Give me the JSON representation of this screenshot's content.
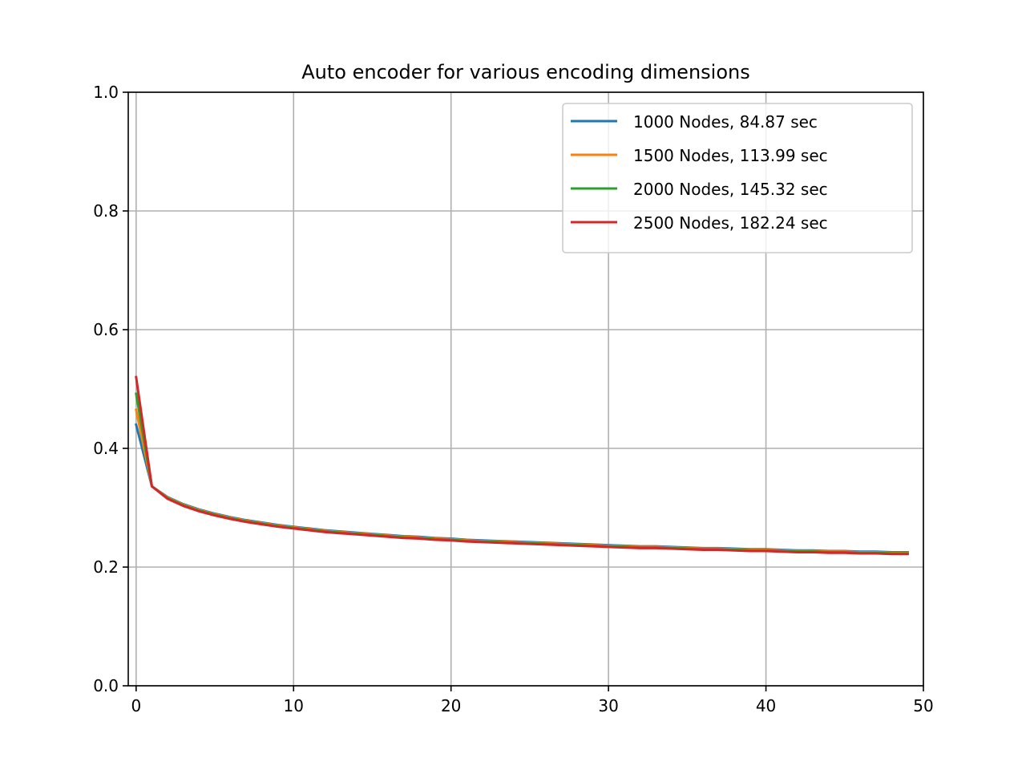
{
  "chart_data": {
    "type": "line",
    "title": "Auto encoder for various encoding dimensions",
    "xlabel": "",
    "ylabel": "",
    "xlim": [
      -0.5,
      50
    ],
    "ylim": [
      0.0,
      1.0
    ],
    "xticks": [
      0,
      10,
      20,
      30,
      40,
      50
    ],
    "xtick_labels": [
      "0",
      "10",
      "20",
      "30",
      "40",
      "50"
    ],
    "yticks": [
      0.0,
      0.2,
      0.4,
      0.6,
      0.8,
      1.0
    ],
    "ytick_labels": [
      "0.0",
      "0.2",
      "0.4",
      "0.6",
      "0.8",
      "1.0"
    ],
    "grid": true,
    "legend_position": "top-right",
    "x": [
      0,
      1,
      2,
      3,
      4,
      5,
      6,
      7,
      8,
      9,
      10,
      11,
      12,
      13,
      14,
      15,
      16,
      17,
      18,
      19,
      20,
      21,
      22,
      23,
      24,
      25,
      26,
      27,
      28,
      29,
      30,
      31,
      32,
      33,
      34,
      35,
      36,
      37,
      38,
      39,
      40,
      41,
      42,
      43,
      44,
      45,
      46,
      47,
      48,
      49
    ],
    "series": [
      {
        "name": "1000 Nodes, 84.87 sec",
        "color": "#1f77b4",
        "values": [
          0.44,
          0.336,
          0.318,
          0.306,
          0.297,
          0.29,
          0.284,
          0.279,
          0.275,
          0.271,
          0.268,
          0.265,
          0.262,
          0.26,
          0.258,
          0.256,
          0.254,
          0.252,
          0.251,
          0.249,
          0.248,
          0.246,
          0.245,
          0.244,
          0.243,
          0.242,
          0.241,
          0.24,
          0.239,
          0.238,
          0.237,
          0.236,
          0.235,
          0.235,
          0.234,
          0.233,
          0.232,
          0.232,
          0.231,
          0.23,
          0.23,
          0.229,
          0.228,
          0.228,
          0.227,
          0.227,
          0.226,
          0.226,
          0.225,
          0.225
        ]
      },
      {
        "name": "1500 Nodes, 113.99 sec",
        "color": "#ff7f0e",
        "values": [
          0.465,
          0.336,
          0.317,
          0.305,
          0.296,
          0.289,
          0.283,
          0.278,
          0.274,
          0.27,
          0.267,
          0.264,
          0.261,
          0.259,
          0.257,
          0.255,
          0.253,
          0.251,
          0.25,
          0.248,
          0.247,
          0.245,
          0.244,
          0.243,
          0.242,
          0.241,
          0.24,
          0.239,
          0.238,
          0.237,
          0.236,
          0.235,
          0.234,
          0.234,
          0.233,
          0.232,
          0.231,
          0.231,
          0.23,
          0.229,
          0.229,
          0.228,
          0.227,
          0.227,
          0.226,
          0.226,
          0.225,
          0.225,
          0.224,
          0.224
        ]
      },
      {
        "name": "2000 Nodes, 145.32 sec",
        "color": "#2ca02c",
        "values": [
          0.492,
          0.336,
          0.316,
          0.304,
          0.295,
          0.288,
          0.282,
          0.277,
          0.273,
          0.269,
          0.266,
          0.263,
          0.26,
          0.258,
          0.256,
          0.254,
          0.252,
          0.25,
          0.249,
          0.247,
          0.246,
          0.244,
          0.243,
          0.242,
          0.241,
          0.24,
          0.239,
          0.238,
          0.237,
          0.236,
          0.235,
          0.234,
          0.233,
          0.233,
          0.232,
          0.231,
          0.23,
          0.23,
          0.229,
          0.228,
          0.228,
          0.227,
          0.226,
          0.226,
          0.225,
          0.225,
          0.224,
          0.224,
          0.223,
          0.223
        ]
      },
      {
        "name": "2500 Nodes, 182.24 sec",
        "color": "#d62728",
        "values": [
          0.52,
          0.336,
          0.315,
          0.303,
          0.294,
          0.287,
          0.281,
          0.276,
          0.272,
          0.268,
          0.265,
          0.262,
          0.259,
          0.257,
          0.255,
          0.253,
          0.251,
          0.249,
          0.248,
          0.246,
          0.245,
          0.243,
          0.242,
          0.241,
          0.24,
          0.239,
          0.238,
          0.237,
          0.236,
          0.235,
          0.234,
          0.233,
          0.232,
          0.232,
          0.231,
          0.23,
          0.229,
          0.229,
          0.228,
          0.227,
          0.227,
          0.226,
          0.225,
          0.225,
          0.224,
          0.224,
          0.223,
          0.223,
          0.222,
          0.222
        ]
      }
    ]
  }
}
